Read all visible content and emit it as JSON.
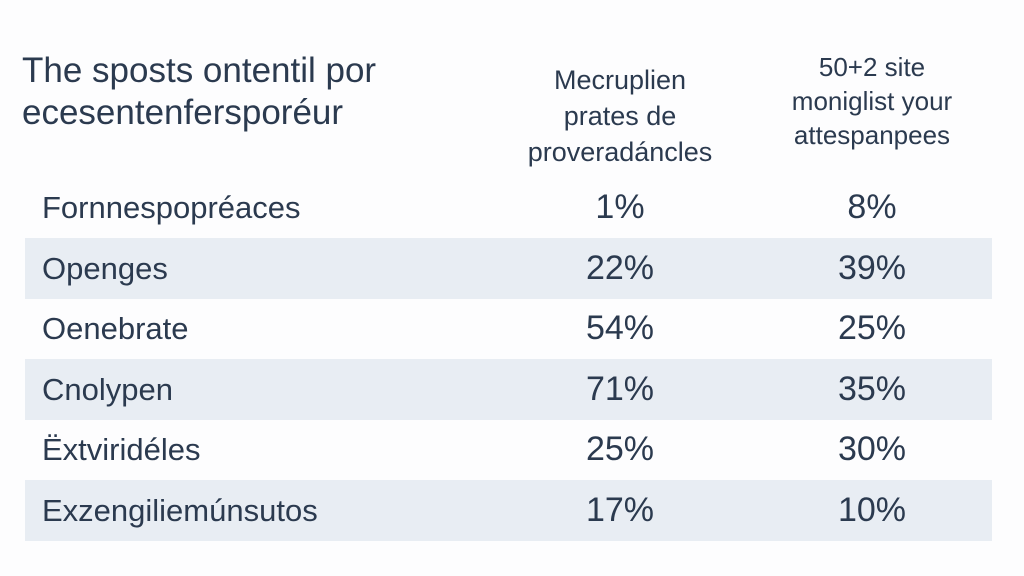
{
  "header": {
    "columns": [
      {
        "lines": [
          "The sposts ontentil por",
          "ecesentenfersporéur"
        ]
      },
      {
        "lines": [
          "Mecruplien",
          "prates de",
          "proveradáncles"
        ]
      },
      {
        "lines": [
          "50+2 site",
          "moniglist your",
          "attespanpees"
        ]
      }
    ]
  },
  "table": {
    "rows": [
      [
        "Fornnespopréaces",
        "1%",
        "8%"
      ],
      [
        "Openges",
        "22%",
        "39%"
      ],
      [
        "Oenebrate",
        "54%",
        "25%"
      ],
      [
        "Cnolypen",
        "71%",
        "35%"
      ],
      [
        "Ëxtviridéles",
        "25%",
        "30%"
      ],
      [
        "Exzengiliemúnsutos",
        "17%",
        "10%"
      ]
    ]
  }
}
